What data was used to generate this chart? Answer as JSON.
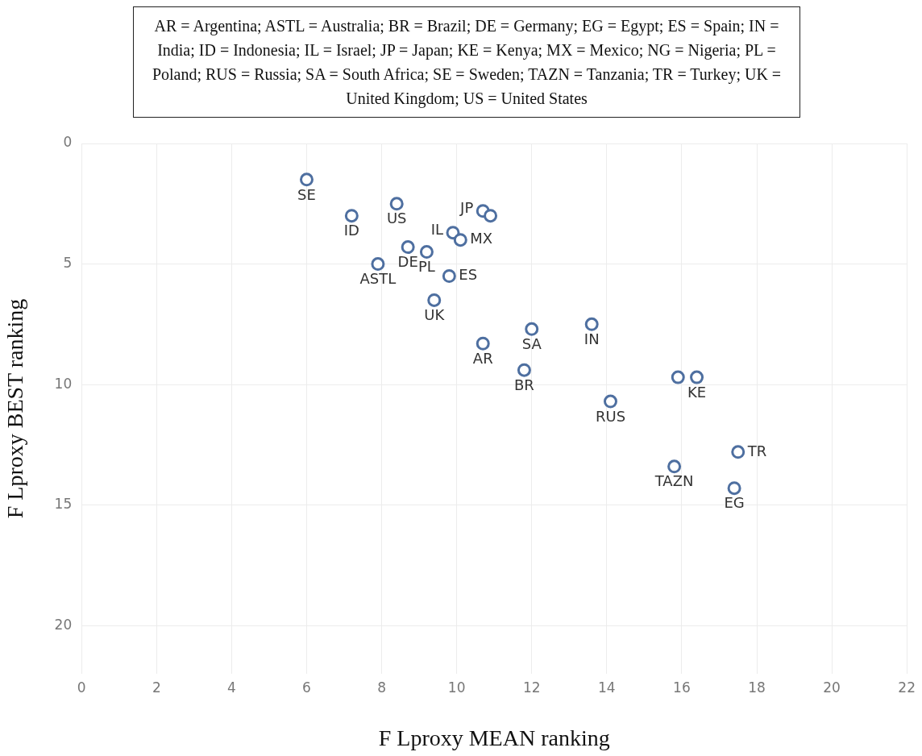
{
  "chart_data": {
    "type": "scatter",
    "xlabel": "F Lproxy MEAN ranking",
    "ylabel": "F Lproxy BEST ranking",
    "xlim": [
      0,
      22
    ],
    "xticks": [
      0,
      2,
      4,
      6,
      8,
      10,
      12,
      14,
      16,
      18,
      20,
      22
    ],
    "ylim": [
      22,
      0
    ],
    "yticks": [
      0,
      5,
      10,
      15,
      20
    ],
    "grid": true,
    "legend": false,
    "marker": "circle",
    "series": [
      {
        "color": "#4e6fa0",
        "x": [
          6.0,
          7.2,
          8.4,
          7.9,
          8.7,
          9.2,
          9.9,
          10.1,
          10.7,
          10.9,
          9.8,
          9.4,
          10.7,
          12.0,
          11.8,
          13.6,
          14.1,
          15.9,
          16.4,
          17.5,
          15.8,
          17.4
        ],
        "values": [
          1.5,
          3.0,
          2.5,
          5.0,
          4.3,
          4.5,
          3.7,
          4.0,
          2.8,
          3.0,
          5.5,
          6.5,
          8.3,
          7.7,
          9.4,
          7.5,
          10.7,
          9.7,
          9.7,
          12.8,
          13.4,
          14.3
        ]
      }
    ],
    "annotations": [
      "AR = Argentina; ASTL = Australia; BR = Brazil; DE = Germany; EG = Egypt; ES = Spain; IN = India; ID = Indonesia; IL = Israel; JP = Japan; KE = Kenya; MX = Mexico; NG = Nigeria; PL = Poland; RUS = Russia; SA = South Africa; SE = Sweden; TAZN = Tanzania; TR = Turkey; UK = United Kingdom; US = United States",
      {
        "text": "SE",
        "x": 6.0,
        "y": 1.5
      },
      {
        "text": "ID",
        "x": 7.2,
        "y": 3.0
      },
      {
        "text": "US",
        "x": 8.4,
        "y": 2.5
      },
      {
        "text": "ASTL",
        "x": 7.9,
        "y": 5.0
      },
      {
        "text": "DE",
        "x": 8.7,
        "y": 4.3
      },
      {
        "text": "PL",
        "x": 9.2,
        "y": 4.5
      },
      {
        "text": "IL",
        "x": 9.9,
        "y": 3.7
      },
      {
        "text": "MX",
        "x": 10.1,
        "y": 4.0
      },
      {
        "text": "JP",
        "x": 10.7,
        "y": 2.8
      },
      {
        "text": "ES",
        "x": 9.8,
        "y": 5.5
      },
      {
        "text": "UK",
        "x": 9.4,
        "y": 6.5
      },
      {
        "text": "AR",
        "x": 10.7,
        "y": 8.3
      },
      {
        "text": "SA",
        "x": 12.0,
        "y": 7.7
      },
      {
        "text": "BR",
        "x": 11.8,
        "y": 9.4
      },
      {
        "text": "IN",
        "x": 13.6,
        "y": 7.5
      },
      {
        "text": "RUS",
        "x": 14.1,
        "y": 10.7
      },
      {
        "text": "KE",
        "x": 16.4,
        "y": 9.7
      },
      {
        "text": "TR",
        "x": 17.5,
        "y": 12.8
      },
      {
        "text": "TAZN",
        "x": 15.8,
        "y": 13.4
      },
      {
        "text": "EG",
        "x": 17.4,
        "y": 14.3
      }
    ]
  }
}
